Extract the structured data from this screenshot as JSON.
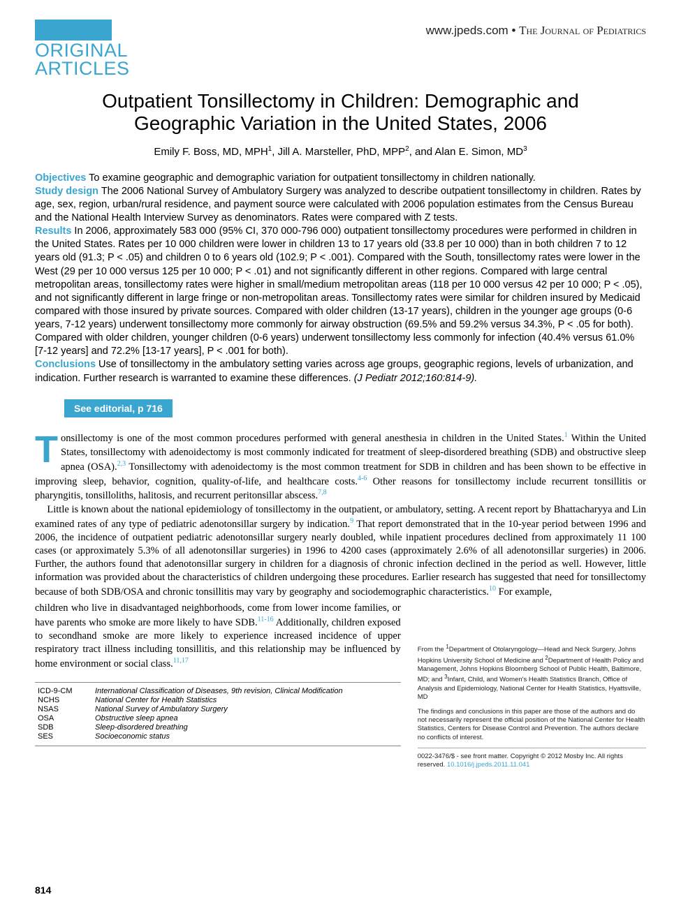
{
  "header": {
    "section_label_line1": "ORIGINAL",
    "section_label_line2": "ARTICLES",
    "journal_url": "www.jpeds.com",
    "journal_sep": " • ",
    "journal_name": "The Journal of Pediatrics"
  },
  "title": "Outpatient Tonsillectomy in Children: Demographic and Geographic Variation in the United States, 2006",
  "authors_html": "Emily F. Boss, MD, MPH<sup>1</sup>, Jill A. Marsteller, PhD, MPP<sup>2</sup>, and Alan E. Simon, MD<sup>3</sup>",
  "abstract": {
    "objectives_label": "Objectives",
    "objectives": " To examine geographic and demographic variation for outpatient tonsillectomy in children nationally.",
    "design_label": "Study design",
    "design": " The 2006 National Survey of Ambulatory Surgery was analyzed to describe outpatient tonsillectomy in children. Rates by age, sex, region, urban/rural residence, and payment source were calculated with 2006 population estimates from the Census Bureau and the National Health Interview Survey as denominators. Rates were compared with Z tests.",
    "results_label": "Results",
    "results": " In 2006, approximately 583 000 (95% CI, 370 000-796 000) outpatient tonsillectomy procedures were performed in children in the United States. Rates per 10 000 children were lower in children 13 to 17 years old (33.8 per 10 000) than in both children 7 to 12 years old (91.3; P < .05) and children 0 to 6 years old (102.9; P < .001). Compared with the South, tonsillectomy rates were lower in the West (29 per 10 000 versus 125 per 10 000; P < .01) and not significantly different in other regions. Compared with large central metropolitan areas, tonsillectomy rates were higher in small/medium metropolitan areas (118 per 10 000 versus 42 per 10 000; P < .05), and not significantly different in large fringe or non-metropolitan areas. Tonsillectomy rates were similar for children insured by Medicaid compared with those insured by private sources. Compared with older children (13-17 years), children in the younger age groups (0-6 years, 7-12 years) underwent tonsillectomy more commonly for airway obstruction (69.5% and 59.2% versus 34.3%, P < .05 for both). Compared with older children, younger children (0-6 years) underwent tonsillectomy less commonly for infection (40.4% versus 61.0% [7-12 years] and 72.2% [13-17 years], P < .001 for both).",
    "conclusions_label": "Conclusions",
    "conclusions": " Use of tonsillectomy in the ambulatory setting varies across age groups, geographic regions, levels of urbanization, and indication. Further research is warranted to examine these differences. ",
    "citation": "(J Pediatr 2012;160:814-9)."
  },
  "editorial": "See editorial, p 716",
  "body": {
    "p1_dropcap": "T",
    "p1": "onsillectomy is one of the most common procedures performed with general anesthesia in children in the United States.<sup>1</sup> Within the United States, tonsillectomy with adenoidectomy is most commonly indicated for treatment of sleep-disordered breathing (SDB) and obstructive sleep apnea (OSA).<sup>2,3</sup> Tonsillectomy with adenoidectomy is the most common treatment for SDB in children and has been shown to be effective in improving sleep, behavior, cognition, quality-of-life, and healthcare costs.<sup>4-6</sup> Other reasons for tonsillectomy include recurrent tonsillitis or pharyngitis, tonsilloliths, halitosis, and recurrent peritonsillar abscess.<sup>7,8</sup>",
    "p2": "Little is known about the national epidemiology of tonsillectomy in the outpatient, or ambulatory, setting. A recent report by Bhattacharyya and Lin examined rates of any type of pediatric adenotonsillar surgery by indication.<sup>9</sup> That report demonstrated that in the 10-year period between 1996 and 2006, the incidence of outpatient pediatric adenotonsillar surgery nearly doubled, while inpatient procedures declined from approximately 11 100 cases (or approximately 5.3% of all adenotonsillar surgeries) in 1996 to 4200 cases (approximately 2.6% of all adenotonsillar surgeries) in 2006. Further, the authors found that adenotonsillar surgery in children for a diagnosis of chronic infection declined in the period as well. However, little information was provided about the characteristics of children undergoing these procedures. Earlier research has suggested that need for tonsillectomy because of both SDB/OSA and chronic tonsillitis may vary by geography and sociodemographic characteristics.<sup>10</sup> For example,",
    "p3_left": "children who live in disadvantaged neighborhoods, come from lower income families, or have parents who smoke are more likely to have SDB.<sup>11-16</sup> Additionally, children exposed to secondhand smoke are more likely to experience increased incidence of upper respiratory tract illness including tonsillitis, and this relationship may be influenced by home environment or social class.<sup>11,17</sup>"
  },
  "abbreviations": [
    {
      "key": "ICD-9-CM",
      "val": "International Classification of Diseases, 9th revision, Clinical Modification"
    },
    {
      "key": "NCHS",
      "val": "National Center for Health Statistics"
    },
    {
      "key": "NSAS",
      "val": "National Survey of Ambulatory Surgery"
    },
    {
      "key": "OSA",
      "val": "Obstructive sleep apnea"
    },
    {
      "key": "SDB",
      "val": "Sleep-disordered breathing"
    },
    {
      "key": "SES",
      "val": "Socioeconomic status"
    }
  ],
  "affiliations": "From the <sup>1</sup>Department of Otolaryngology—Head and Neck Surgery, Johns Hopkins University School of Medicine and <sup>2</sup>Department of Health Policy and Management, Johns Hopkins Bloomberg School of Public Health, Baltimore, MD; and <sup>3</sup>Infant, Child, and Women's Health Statistics Branch, Office of Analysis and Epidemiology, National Center for Health Statistics, Hyattsville, MD",
  "disclaimer": "The findings and conclusions in this paper are those of the authors and do not necessarily represent the official position of the National Center for Health Statistics, Centers for Disease Control and Prevention. The authors declare no conflicts of interest.",
  "copyright": "0022-3476/$ - see front matter. Copyright © 2012 Mosby Inc. All rights reserved. ",
  "doi": "10.1016/j.jpeds.2011.11.041",
  "page_number": "814",
  "colors": {
    "accent": "#3aa6d0"
  }
}
